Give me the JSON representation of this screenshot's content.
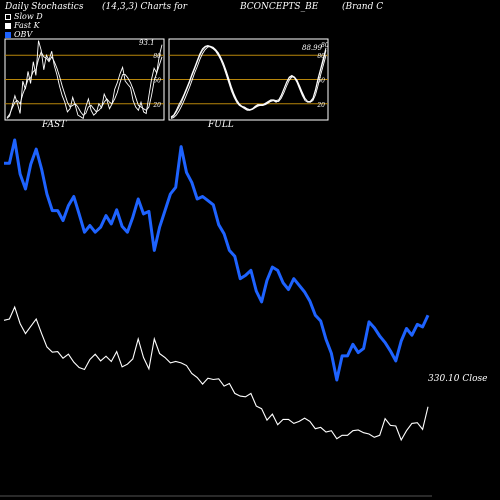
{
  "header": {
    "title": "Daily Stochastics",
    "params": "(14,3,3) Charts for",
    "symbol": "BCONCEPTS_BE",
    "company": "(Brand C"
  },
  "legend": [
    {
      "label": "Slow  D",
      "color": "#ffffff",
      "style": "outline"
    },
    {
      "label": "Fast K",
      "color": "#ffffff",
      "style": "filled"
    },
    {
      "label": "OBV",
      "color": "#1e63ff",
      "style": "filled"
    }
  ],
  "colors": {
    "background": "#000000",
    "stoch_line": "#ffffff",
    "panel_border": "#ffffff",
    "level_line": "#b8860b",
    "obv": "#1e63ff",
    "price": "#ffffff"
  },
  "panels": {
    "fast_label": "FAST",
    "full_label": "FULL",
    "fast_value": "93.1",
    "full_value": "88.99",
    "full_value_tick": "80"
  },
  "close_label": "330.10 Close",
  "chart_data": [
    {
      "type": "line",
      "name": "FAST",
      "ylim": [
        0,
        100
      ],
      "levels": [
        20,
        50,
        80
      ],
      "ticks": [
        "80",
        "50",
        "20"
      ],
      "x": [
        1,
        2,
        3,
        4,
        5,
        6,
        7,
        8,
        9,
        10,
        11,
        12,
        13,
        14,
        15,
        16,
        17,
        18,
        19,
        20,
        21,
        22,
        23,
        24,
        25,
        26,
        27,
        28,
        29,
        30,
        31,
        32,
        33,
        34,
        35,
        36,
        37,
        38,
        39,
        40,
        41,
        42,
        43,
        44,
        45,
        46,
        47,
        48,
        49,
        50,
        51,
        52,
        53,
        54,
        55,
        56,
        57,
        58,
        59,
        60
      ],
      "series": [
        {
          "values": [
            2,
            5,
            18,
            30,
            20,
            8,
            48,
            38,
            60,
            45,
            72,
            55,
            98,
            86,
            62,
            80,
            74,
            85,
            67,
            56,
            42,
            30,
            22,
            10,
            14,
            28,
            18,
            6,
            4,
            2,
            16,
            26,
            12,
            6,
            9,
            20,
            15,
            32,
            25,
            14,
            20,
            38,
            46,
            57,
            65,
            48,
            44,
            40,
            24,
            16,
            12,
            22,
            10,
            8,
            30,
            50,
            64,
            58,
            80,
            93
          ]
        },
        {
          "values": [
            3,
            7,
            15,
            22,
            24,
            20,
            32,
            40,
            50,
            52,
            60,
            62,
            75,
            84,
            78,
            76,
            72,
            78,
            72,
            64,
            54,
            42,
            32,
            22,
            16,
            18,
            20,
            16,
            10,
            6,
            8,
            16,
            18,
            14,
            10,
            12,
            16,
            22,
            26,
            22,
            20,
            26,
            34,
            46,
            56,
            56,
            52,
            46,
            38,
            28,
            18,
            16,
            14,
            12,
            16,
            30,
            48,
            58,
            68,
            78
          ]
        }
      ]
    },
    {
      "type": "line",
      "name": "FULL",
      "ylim": [
        0,
        100
      ],
      "levels": [
        20,
        50,
        80
      ],
      "ticks": [
        "80",
        "50",
        "20"
      ],
      "x": [
        1,
        2,
        3,
        4,
        5,
        6,
        7,
        8,
        9,
        10,
        11,
        12,
        13,
        14,
        15,
        16,
        17,
        18,
        19,
        20,
        21,
        22,
        23,
        24,
        25,
        26,
        27,
        28,
        29,
        30,
        31,
        32,
        33,
        34,
        35,
        36,
        37,
        38,
        39,
        40,
        41,
        42,
        43,
        44,
        45,
        46,
        47,
        48,
        49,
        50,
        51,
        52,
        53,
        54,
        55,
        56,
        57,
        58,
        59,
        60
      ],
      "series": [
        {
          "values": [
            3,
            5,
            10,
            16,
            22,
            30,
            38,
            46,
            55,
            63,
            72,
            80,
            86,
            90,
            91,
            90,
            88,
            85,
            80,
            74,
            66,
            56,
            46,
            36,
            28,
            22,
            18,
            16,
            14,
            12,
            12,
            14,
            16,
            18,
            18,
            18,
            20,
            22,
            24,
            24,
            22,
            24,
            30,
            38,
            46,
            52,
            54,
            52,
            46,
            38,
            30,
            24,
            22,
            22,
            26,
            36,
            50,
            62,
            74,
            86
          ]
        },
        {
          "values": [
            2,
            3,
            6,
            11,
            17,
            24,
            32,
            40,
            49,
            58,
            66,
            75,
            82,
            87,
            90,
            91,
            90,
            87,
            83,
            77,
            70,
            61,
            51,
            41,
            32,
            25,
            20,
            17,
            15,
            13,
            12,
            13,
            15,
            17,
            18,
            18,
            19,
            21,
            23,
            24,
            23,
            23,
            27,
            34,
            42,
            49,
            53,
            53,
            49,
            42,
            34,
            27,
            23,
            22,
            24,
            31,
            43,
            56,
            68,
            80
          ]
        },
        {
          "values": [
            4,
            6,
            12,
            19,
            25,
            32,
            40,
            48,
            57,
            65,
            74,
            82,
            88,
            91,
            92,
            91,
            89,
            86,
            82,
            76,
            69,
            59,
            49,
            39,
            30,
            24,
            19,
            17,
            16,
            14,
            13,
            14,
            17,
            19,
            19,
            19,
            21,
            23,
            25,
            25,
            24,
            25,
            31,
            39,
            47,
            53,
            55,
            53,
            48,
            40,
            32,
            26,
            23,
            23,
            27,
            38,
            52,
            64,
            77,
            89
          ]
        }
      ]
    },
    {
      "type": "line",
      "name": "OBV",
      "x": [
        1,
        2,
        3,
        4,
        5,
        6,
        7,
        8,
        9,
        10,
        11,
        12,
        13,
        14,
        15,
        16,
        17,
        18,
        19,
        20,
        21,
        22,
        23,
        24,
        25,
        26,
        27,
        28,
        29,
        30,
        31,
        32,
        33,
        34,
        35,
        36,
        37,
        38,
        39,
        40,
        41,
        42,
        43,
        44,
        45,
        46,
        47,
        48,
        49,
        50,
        51,
        52,
        53,
        54,
        55,
        56,
        57,
        58,
        59,
        60,
        61,
        62,
        63,
        64,
        65,
        66,
        67,
        68,
        69,
        70,
        71,
        72,
        73,
        74,
        75,
        76,
        77,
        78,
        79,
        80
      ],
      "values": [
        35,
        35,
        63,
        22,
        4,
        34,
        52,
        28,
        -2,
        -22,
        -22,
        -34,
        -16,
        -5,
        -26,
        -48,
        -40,
        -48,
        -42,
        -28,
        -38,
        -21,
        -41,
        -48,
        -30,
        -8,
        -26,
        -23,
        -70,
        -42,
        -22,
        -2,
        6,
        55,
        24,
        12,
        -8,
        -5,
        -10,
        -15,
        -39,
        -50,
        -70,
        -77,
        -104,
        -100,
        -94,
        -119,
        -132,
        -106,
        -90,
        -94,
        -109,
        -117,
        -104,
        -112,
        -120,
        -131,
        -148,
        -155,
        -177,
        -194,
        -226,
        -197,
        -197,
        -183,
        -193,
        -188,
        -156,
        -163,
        -173,
        -181,
        -191,
        -203,
        -179,
        -164,
        -172,
        -159,
        -162,
        -148
      ]
    },
    {
      "type": "line",
      "name": "Close",
      "x": [
        1,
        2,
        3,
        4,
        5,
        6,
        7,
        8,
        9,
        10,
        11,
        12,
        13,
        14,
        15,
        16,
        17,
        18,
        19,
        20,
        21,
        22,
        23,
        24,
        25,
        26,
        27,
        28,
        29,
        30,
        31,
        32,
        33,
        34,
        35,
        36,
        37,
        38,
        39,
        40,
        41,
        42,
        43,
        44,
        45,
        46,
        47,
        48,
        49,
        50,
        51,
        52,
        53,
        54,
        55,
        56,
        57,
        58,
        59,
        60,
        61,
        62,
        63,
        64,
        65,
        66,
        67,
        68,
        69,
        70,
        71,
        72,
        73,
        74,
        75,
        76,
        77,
        78,
        79,
        80
      ],
      "values": [
        460,
        462,
        480,
        455,
        440,
        451,
        462,
        440,
        420,
        412,
        413,
        403,
        409,
        397,
        389,
        386,
        401,
        409,
        399,
        406,
        398,
        413,
        390,
        394,
        402,
        432,
        404,
        387,
        432,
        410,
        404,
        396,
        398,
        396,
        392,
        380,
        374,
        364,
        373,
        371,
        372,
        361,
        365,
        350,
        346,
        345,
        350,
        331,
        327,
        310,
        319,
        303,
        311,
        311,
        305,
        308,
        313,
        308,
        297,
        299,
        292,
        294,
        282,
        287,
        287,
        294,
        295,
        291,
        289,
        284,
        287,
        312,
        302,
        301,
        280,
        294,
        305,
        306,
        296,
        330.1
      ]
    }
  ]
}
